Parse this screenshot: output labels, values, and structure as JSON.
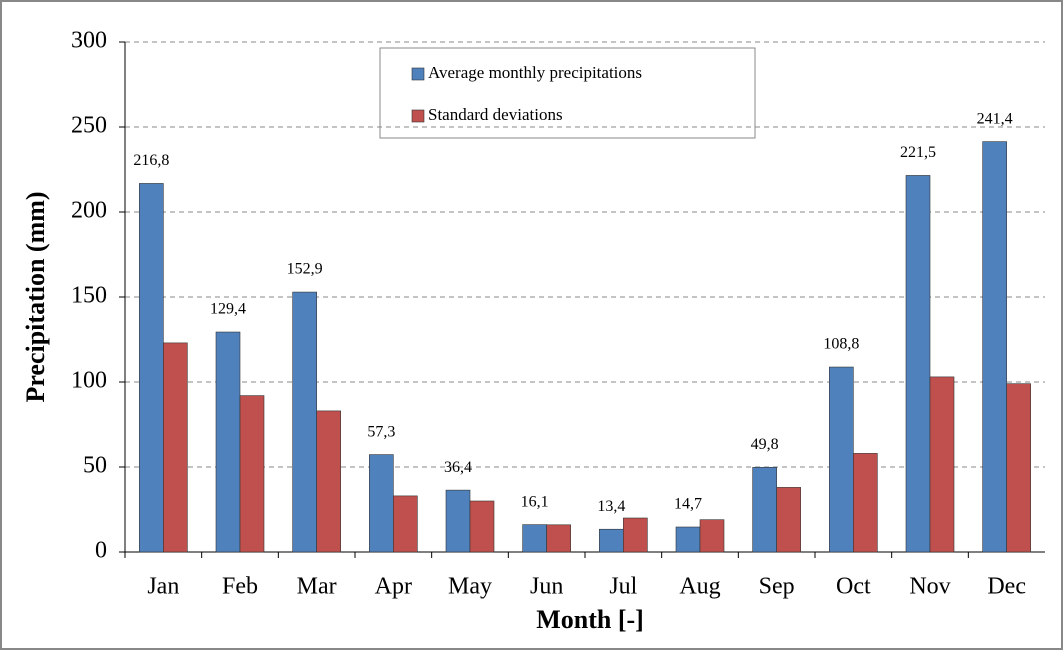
{
  "chart_data": {
    "type": "bar",
    "x_label": "Month [-]",
    "y_label": "Precipitation (mm)",
    "categories": [
      "Jan",
      "Feb",
      "Mar",
      "Apr",
      "May",
      "Jun",
      "Jul",
      "Aug",
      "Sep",
      "Oct",
      "Nov",
      "Dec"
    ],
    "series": [
      {
        "name": "Average monthly precipitations",
        "color": "#4f81bd",
        "values": [
          216.8,
          129.4,
          152.9,
          57.3,
          36.4,
          16.1,
          13.4,
          14.7,
          49.8,
          108.8,
          221.5,
          241.4
        ],
        "value_labels": [
          "216,8",
          "129,4",
          "152,9",
          "57,3",
          "36,4",
          "16,1",
          "13,4",
          "14,7",
          "49,8",
          "108,8",
          "221,5",
          "241,4"
        ]
      },
      {
        "name": "Standard deviations",
        "color": "#c0504d",
        "values": [
          123,
          92,
          83,
          33,
          30,
          16,
          20,
          19,
          38,
          58,
          103,
          99
        ]
      }
    ],
    "ylim": [
      0,
      300
    ],
    "yticks": [
      0,
      50,
      100,
      150,
      200,
      250,
      300
    ],
    "grid": true
  }
}
